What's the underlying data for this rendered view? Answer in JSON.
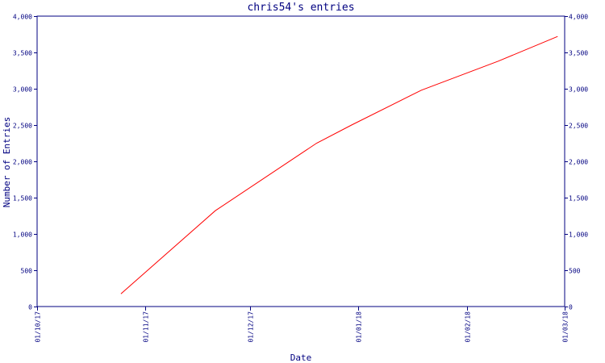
{
  "chart_data": {
    "type": "line",
    "title": "chris54's entries",
    "xlabel": "Date",
    "ylabel": "Number of Entries",
    "x_ticks": [
      "01/10/17",
      "01/11/17",
      "01/12/17",
      "01/01/18",
      "01/02/18",
      "01/03/18"
    ],
    "x_range": [
      "2017-10-01",
      "2018-03-01"
    ],
    "y_ticks": [
      0,
      500,
      1000,
      1500,
      2000,
      2500,
      3000,
      3500,
      4000
    ],
    "y_tick_labels": [
      "0",
      "500",
      "1,000",
      "1,500",
      "2,000",
      "2,500",
      "3,000",
      "3,500",
      "4,000"
    ],
    "ylim": [
      0,
      4000
    ],
    "grid": false,
    "legend": "none",
    "series": [
      {
        "color": "#ff0000",
        "points": [
          {
            "x": "2017-10-25",
            "y": 175
          },
          {
            "x": "2017-11-21",
            "y": 1320
          },
          {
            "x": "2017-12-20",
            "y": 2250
          },
          {
            "x": "2017-12-30",
            "y": 2500
          },
          {
            "x": "2018-01-19",
            "y": 2980
          },
          {
            "x": "2018-02-10",
            "y": 3380
          },
          {
            "x": "2018-02-27",
            "y": 3720
          }
        ]
      }
    ],
    "colors": {
      "axis": "#000080",
      "text": "#000080",
      "line": "#ff0000",
      "background": "#ffffff"
    }
  }
}
